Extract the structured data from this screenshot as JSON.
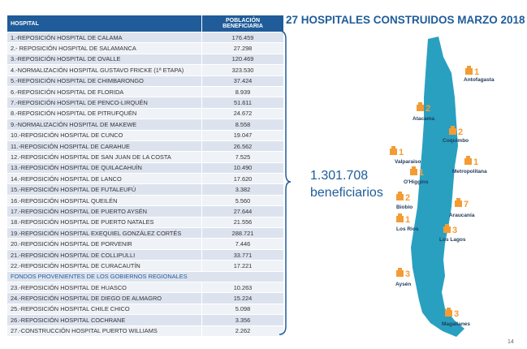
{
  "table": {
    "header": [
      "HOSPITAL",
      "POBLACIÓN BENEFICIARIA"
    ],
    "rows": [
      [
        "1.-REPOSICIÓN HOSPITAL DE CALAMA",
        "176.459"
      ],
      [
        "2.- REPOSICIÓN HOSPITAL DE SALAMANCA",
        "27.298"
      ],
      [
        "3.-REPOSICIÓN HOSPITAL DE OVALLE",
        "120.469"
      ],
      [
        "4.-NORMALIZACIÓN HOSPITAL GUSTAVO FRICKE (1ª ETAPA)",
        "323.530"
      ],
      [
        "5.-REPOSICIÓN HOSPITAL DE CHIMBARONGO",
        "37.424"
      ],
      [
        "6.-REPOSICIÓN HOSPITAL DE FLORIDA",
        "8.939"
      ],
      [
        "7.-REPOSICIÓN HOSPITAL DE PENCO-LIRQUÉN",
        "51.611"
      ],
      [
        "8.-REPOSICIÓN HOSPITAL DE PITRUFQUÉN",
        "24.672"
      ],
      [
        "9.-NORMALIZACIÓN HOSPITAL DE MAKEWE",
        "8.558"
      ],
      [
        "10.-REPOSICIÓN HOSPITAL DE CUNCO",
        "19.047"
      ],
      [
        "11.-REPOSICIÓN HOSPITAL DE CARAHUE",
        "26.562"
      ],
      [
        "12.-REPOSICIÓN HOSPITAL DE SAN JUAN DE LA COSTA",
        "7.525"
      ],
      [
        "13.-REPOSICIÓN HOSPITAL DE QUILACAHUÍN",
        "10.490"
      ],
      [
        "14.-REPOSICIÓN HOSPITAL DE LANCO",
        "17.620"
      ],
      [
        "15.-REPOSICIÓN HOSPITAL DE FUTALEUFÚ",
        "3.382"
      ],
      [
        "16.-REPOSICIÓN  HOSPITAL QUEILÉN",
        "5.560"
      ],
      [
        "17.-REPOSICIÓN HOSPITAL DE PUERTO AYSÉN",
        "27.644"
      ],
      [
        "18.-REPOSICIÓN HOSPITAL DE PUERTO NATALES",
        "21.556"
      ],
      [
        "19.-REPOSICIÓN HOSPITAL EXEQUIEL GONZÁLEZ CORTÉS",
        "288.721"
      ],
      [
        "20.-REPOSICIÓN HOSPITAL DE PORVENIR",
        "7.446"
      ],
      [
        "21.-REPOSICIÓN HOSPITAL DE COLLIPULLI",
        "33.771"
      ],
      [
        "22.-REPOSICIÓN HOSPITAL DE CURACAUTÍN",
        "17.221"
      ],
      [
        "FONDOS PROVENIENTES DE LOS GOBIERNOS REGIONALES"
      ],
      [
        "23.-REPOSICIÓN HOSPITAL DE HUASCO",
        "10.263"
      ],
      [
        "24.-REPOSICIÓN HOSPITAL DE DIEGO DE ALMAGRO",
        "15.224"
      ],
      [
        "25.-REPOSICIÓN HOSPITAL CHILE CHICO",
        "5.098"
      ],
      [
        "26.-REPOSICIÓN HOSPITAL COCHRANE",
        "3.356"
      ],
      [
        "27.-CONSTRUCCIÓN HOSPITAL PUERTO WILLIAMS",
        "2.262"
      ]
    ]
  },
  "title": "27 HOSPITALES CONSTRUIDOS MARZO 2018",
  "total": {
    "value": "1.301.708",
    "label": "beneficiarios"
  },
  "regions": [
    {
      "name": "Antofagasta",
      "count": "1"
    },
    {
      "name": "Atacama",
      "count": "2"
    },
    {
      "name": "Coquimbo",
      "count": "2"
    },
    {
      "name": "Valparaiso",
      "count": "1"
    },
    {
      "name": "Metropolitana",
      "count": "1"
    },
    {
      "name": "O'Higgins",
      "count": "1"
    },
    {
      "name": "Biobio",
      "count": "2"
    },
    {
      "name": "Araucanía",
      "count": "7"
    },
    {
      "name": "Los Rios",
      "count": "1"
    },
    {
      "name": "Los Lagos",
      "count": "3"
    },
    {
      "name": "Aysén",
      "count": "3"
    },
    {
      "name": "Magallanes",
      "count": "3"
    }
  ],
  "page_number": "14"
}
